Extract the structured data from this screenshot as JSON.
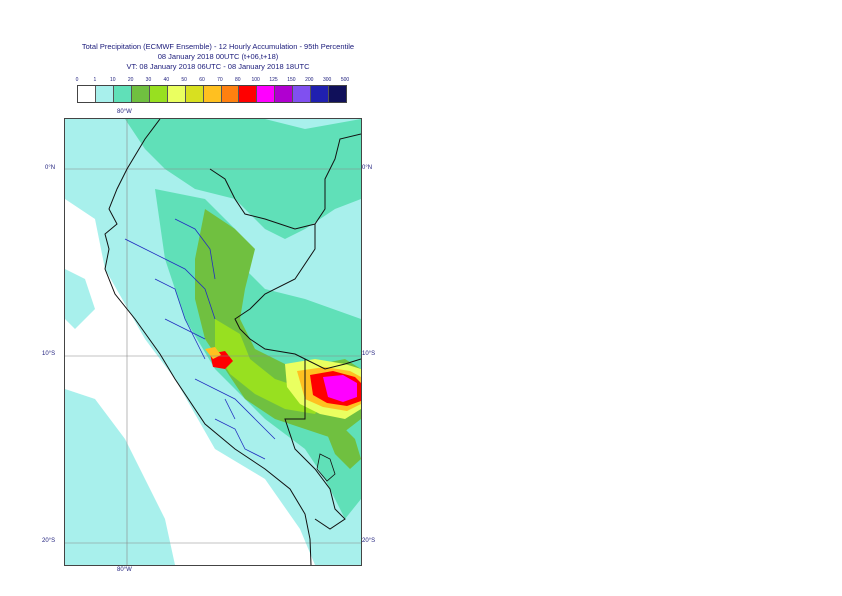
{
  "title": {
    "line1": "Total Precipitation (ECMWF Ensemble) - 12 Hourly Accumulation - 95th Percentile",
    "line2": "08 January 2018 00UTC (t+06,t+18)",
    "line3": "VT: 08 January 2018 06UTC - 08 January 2018 18UTC"
  },
  "legend": {
    "labels": [
      "0",
      "1",
      "10",
      "20",
      "30",
      "40",
      "50",
      "60",
      "70",
      "80",
      "100",
      "125",
      "150",
      "200",
      "300",
      "500"
    ],
    "colors": [
      "#ffffff",
      "#a8f0ec",
      "#60e0b8",
      "#70c040",
      "#98e020",
      "#eaff60",
      "#d8e020",
      "#ffc020",
      "#ff8010",
      "#ff0000",
      "#ff00ff",
      "#b000d0",
      "#8050f0",
      "#2020b0",
      "#10105a"
    ]
  },
  "map": {
    "lon_top": "80°W",
    "lon_bottom": "80°W",
    "lat_0_left": "0°N",
    "lat_0_right": "0°N",
    "lat_10_left": "10°S",
    "lat_10_right": "10°S",
    "lat_20_left": "20°S",
    "lat_20_right": "20°S"
  }
}
